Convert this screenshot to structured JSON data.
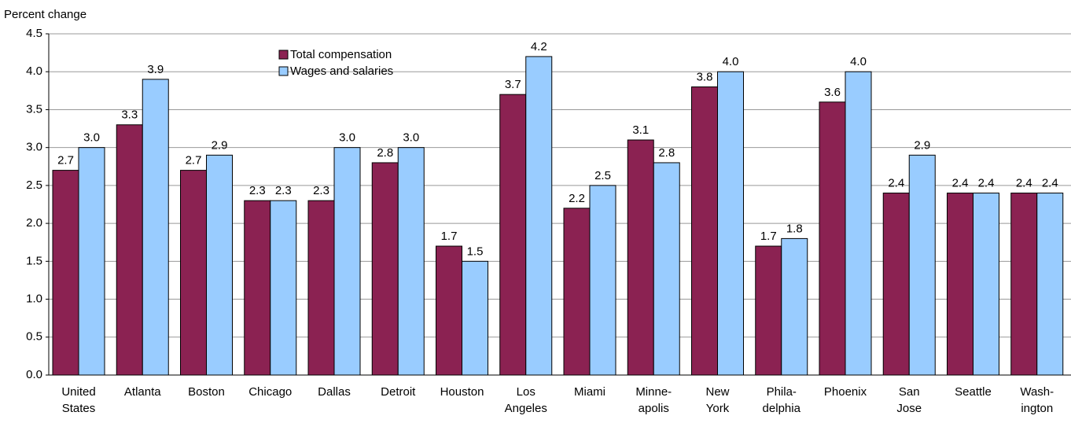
{
  "chart_data": {
    "type": "bar",
    "y_label": "Percent change",
    "categories": [
      "United\nStates",
      "Atlanta",
      "Boston",
      "Chicago",
      "Dallas",
      "Detroit",
      "Houston",
      "Los\nAngeles",
      "Miami",
      "Minne-\napolis",
      "New\nYork",
      "Phila-\ndelphia",
      "Phoenix",
      "San\nJose",
      "Seattle",
      "Wash-\nington"
    ],
    "series": [
      {
        "name": "Total compensation",
        "color": "#8b2252",
        "values": [
          2.7,
          3.3,
          2.7,
          2.3,
          2.3,
          2.8,
          1.7,
          3.7,
          2.2,
          3.1,
          3.8,
          1.7,
          3.6,
          2.4,
          2.4,
          2.4
        ],
        "value_labels": [
          "2.7",
          "3.3",
          "2.7",
          "2.3",
          "2.3",
          "2.8",
          "1.7",
          "3.7",
          "2.2",
          "3.1",
          "3.8",
          "1.7",
          "3.6",
          "2.4",
          "2.4",
          "2.4"
        ]
      },
      {
        "name": "Wages and salaries",
        "color": "#99ccff",
        "values": [
          3.0,
          3.9,
          2.9,
          2.3,
          3.0,
          3.0,
          1.5,
          4.2,
          2.5,
          2.8,
          4.0,
          1.8,
          4.0,
          2.9,
          2.4,
          2.4
        ],
        "value_labels": [
          "3.0",
          "3.9",
          "2.9",
          "2.3",
          "3.0",
          "3.0",
          "1.5",
          "4.2",
          "2.5",
          "2.8",
          "4.0",
          "1.8",
          "4.0",
          "2.9",
          "2.4",
          "2.4"
        ]
      }
    ],
    "ylim": [
      0,
      4.5
    ],
    "yticks": [
      {
        "value": 0,
        "label": "0.0"
      },
      0.5,
      {
        "value": 1,
        "label": "1.0"
      },
      1.5,
      {
        "value": 2,
        "label": "2.0"
      },
      2.5,
      {
        "value": 3,
        "label": "3.0"
      },
      3.5,
      {
        "value": 4,
        "label": "4.0"
      },
      4.5
    ],
    "grid": true
  }
}
